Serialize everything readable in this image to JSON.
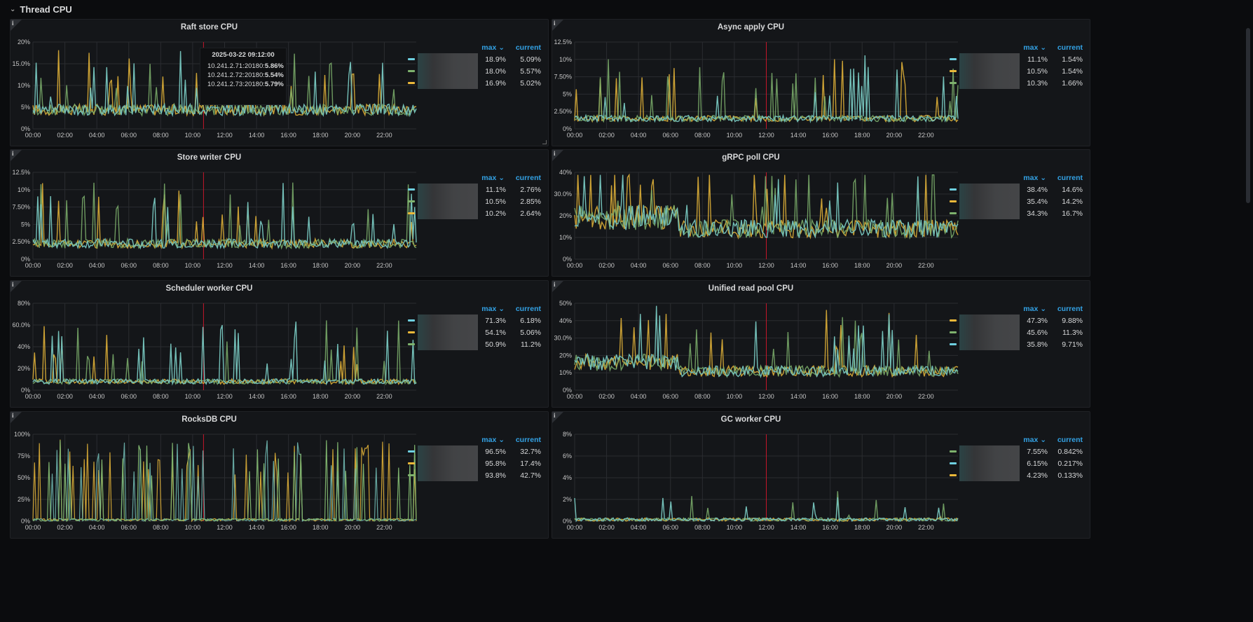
{
  "row": {
    "title": "Thread CPU",
    "collapse_icon": "chevron-down-icon"
  },
  "legend_headers": {
    "max": "max",
    "sort_icon": "chevron-down-icon",
    "current": "current"
  },
  "colors": {
    "teal": "#73bfb8",
    "cyan": "#6ed0e0",
    "yellow": "#eab839",
    "green": "#7eb26d",
    "grid": "#2a2c30",
    "axis": "#c7c7c7",
    "red_line": "#c4162a"
  },
  "xticks": [
    "00:00",
    "02:00",
    "04:00",
    "06:00",
    "08:00",
    "10:00",
    "12:00",
    "14:00",
    "16:00",
    "18:00",
    "20:00",
    "22:00"
  ],
  "panels": [
    {
      "id": "raft",
      "title": "Raft store CPU",
      "yticks": [
        "0%",
        "5%",
        "10%",
        "15.0%",
        "20%"
      ],
      "ymax": 20,
      "legend": [
        {
          "color": "#6ed0e0",
          "max": "18.9%",
          "current": "5.09%"
        },
        {
          "color": "#7eb26d",
          "max": "18.0%",
          "current": "5.57%"
        },
        {
          "color": "#eab839",
          "max": "16.9%",
          "current": "5.02%"
        }
      ],
      "tooltip": {
        "time": "2025-03-22 09:12:00",
        "rows": [
          {
            "color": "#eab839",
            "name": "10.241.2.71:20180:",
            "value": "5.86%"
          },
          {
            "color": "#eab839",
            "name": "10.241.2.72:20180:",
            "value": "5.54%"
          },
          {
            "color": "#6ed0e0",
            "name": "10.241.2.73:20180:",
            "value": "5.79%"
          }
        ]
      }
    },
    {
      "id": "async",
      "title": "Async apply CPU",
      "yticks": [
        "0%",
        "2.50%",
        "5%",
        "7.50%",
        "10%",
        "12.5%"
      ],
      "ymax": 12.5,
      "legend": [
        {
          "color": "#6ed0e0",
          "max": "11.1%",
          "current": "1.54%"
        },
        {
          "color": "#eab839",
          "max": "10.5%",
          "current": "1.54%"
        },
        {
          "color": "#7eb26d",
          "max": "10.3%",
          "current": "1.66%"
        }
      ]
    },
    {
      "id": "storew",
      "title": "Store writer CPU",
      "yticks": [
        "0%",
        "2.50%",
        "5%",
        "7.50%",
        "10%",
        "12.5%"
      ],
      "ymax": 12.5,
      "legend": [
        {
          "color": "#6ed0e0",
          "max": "11.1%",
          "current": "2.76%"
        },
        {
          "color": "#7eb26d",
          "max": "10.5%",
          "current": "2.85%"
        },
        {
          "color": "#eab839",
          "max": "10.2%",
          "current": "2.64%"
        }
      ]
    },
    {
      "id": "grpc",
      "title": "gRPC poll CPU",
      "yticks": [
        "0%",
        "10%",
        "20%",
        "30.0%",
        "40%"
      ],
      "ymax": 40,
      "legend": [
        {
          "color": "#6ed0e0",
          "max": "38.4%",
          "current": "14.6%"
        },
        {
          "color": "#eab839",
          "max": "35.4%",
          "current": "14.2%"
        },
        {
          "color": "#7eb26d",
          "max": "34.3%",
          "current": "16.7%"
        }
      ]
    },
    {
      "id": "sched",
      "title": "Scheduler worker CPU",
      "yticks": [
        "0%",
        "20%",
        "40%",
        "60.0%",
        "80%"
      ],
      "ymax": 80,
      "legend": [
        {
          "color": "#6ed0e0",
          "max": "71.3%",
          "current": "6.18%"
        },
        {
          "color": "#eab839",
          "max": "54.1%",
          "current": "5.06%"
        },
        {
          "color": "#7eb26d",
          "max": "50.9%",
          "current": "11.2%"
        }
      ]
    },
    {
      "id": "unified",
      "title": "Unified read pool CPU",
      "yticks": [
        "0%",
        "10%",
        "20%",
        "30.0%",
        "40%",
        "50%"
      ],
      "ymax": 50,
      "legend": [
        {
          "color": "#eab839",
          "max": "47.3%",
          "current": "9.88%"
        },
        {
          "color": "#7eb26d",
          "max": "45.6%",
          "current": "11.3%"
        },
        {
          "color": "#6ed0e0",
          "max": "35.8%",
          "current": "9.71%"
        }
      ]
    },
    {
      "id": "rocks",
      "title": "RocksDB CPU",
      "yticks": [
        "0%",
        "25%",
        "50%",
        "75%",
        "100%"
      ],
      "ymax": 100,
      "legend": [
        {
          "color": "#6ed0e0",
          "max": "96.5%",
          "current": "32.7%"
        },
        {
          "color": "#eab839",
          "max": "95.8%",
          "current": "17.4%"
        },
        {
          "color": "#7eb26d",
          "max": "93.8%",
          "current": "42.7%"
        }
      ]
    },
    {
      "id": "gc",
      "title": "GC worker CPU",
      "yticks": [
        "0%",
        "2%",
        "4%",
        "6%",
        "8%"
      ],
      "ymax": 8,
      "legend": [
        {
          "color": "#7eb26d",
          "max": "7.55%",
          "current": "0.842%"
        },
        {
          "color": "#6ed0e0",
          "max": "6.15%",
          "current": "0.217%"
        },
        {
          "color": "#eab839",
          "max": "4.23%",
          "current": "0.133%"
        }
      ]
    }
  ]
}
